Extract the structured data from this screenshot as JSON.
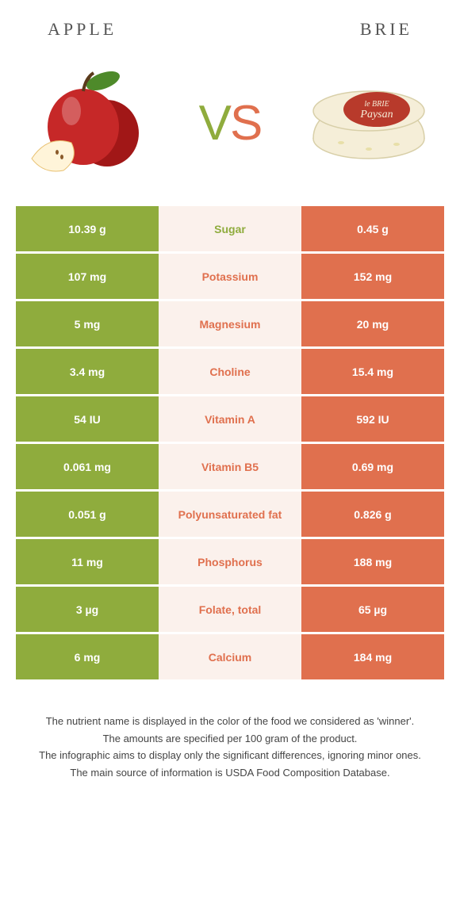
{
  "colors": {
    "left": "#8fac3d",
    "right": "#e0704e",
    "mid_bg": "#fbf1ec"
  },
  "header": {
    "left": "APPLE",
    "right": "BRIE",
    "vs": "VS"
  },
  "rows": [
    {
      "left": "10.39 g",
      "label": "Sugar",
      "right": "0.45 g",
      "winner": "left"
    },
    {
      "left": "107 mg",
      "label": "Potassium",
      "right": "152 mg",
      "winner": "right"
    },
    {
      "left": "5 mg",
      "label": "Magnesium",
      "right": "20 mg",
      "winner": "right"
    },
    {
      "left": "3.4 mg",
      "label": "Choline",
      "right": "15.4 mg",
      "winner": "right"
    },
    {
      "left": "54 IU",
      "label": "Vitamin A",
      "right": "592 IU",
      "winner": "right"
    },
    {
      "left": "0.061 mg",
      "label": "Vitamin B5",
      "right": "0.69 mg",
      "winner": "right"
    },
    {
      "left": "0.051 g",
      "label": "Polyunsaturated fat",
      "right": "0.826 g",
      "winner": "right"
    },
    {
      "left": "11 mg",
      "label": "Phosphorus",
      "right": "188 mg",
      "winner": "right"
    },
    {
      "left": "3 µg",
      "label": "Folate, total",
      "right": "65 µg",
      "winner": "right"
    },
    {
      "left": "6 mg",
      "label": "Calcium",
      "right": "184 mg",
      "winner": "right"
    }
  ],
  "footnotes": [
    "The nutrient name is displayed in the color of the food we considered as 'winner'.",
    "The amounts are specified per 100 gram of the product.",
    "The infographic aims to display only the significant differences, ignoring minor ones.",
    "The main source of information is USDA Food Composition Database."
  ],
  "brie_label": {
    "line1": "le BRIE",
    "line2": "Paysan"
  }
}
